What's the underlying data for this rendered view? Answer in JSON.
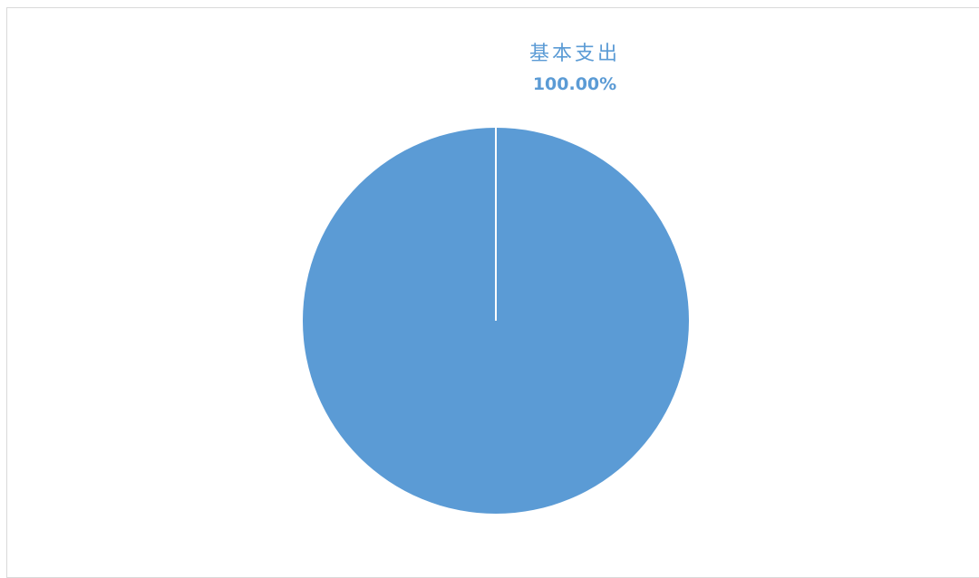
{
  "chart_data": {
    "type": "pie",
    "title": "",
    "slices": [
      {
        "label": "基本支出",
        "value": 100.0,
        "value_label": "100.00%",
        "color": "#5b9bd5"
      }
    ],
    "legend": "none",
    "data_labels": "outside-top"
  }
}
